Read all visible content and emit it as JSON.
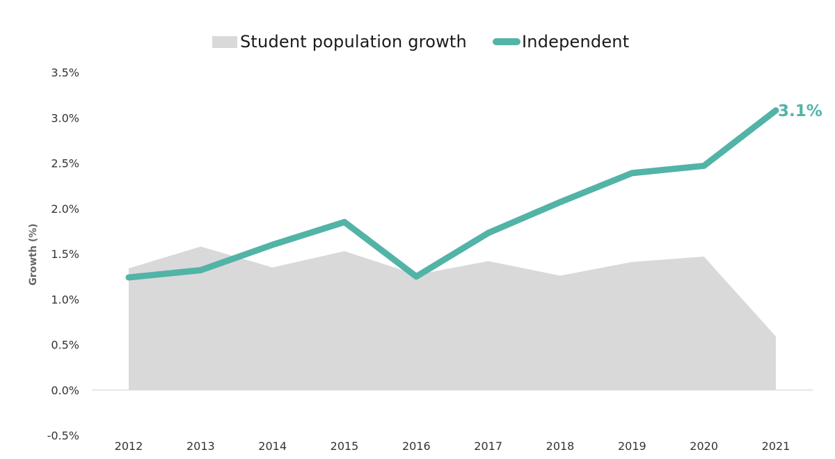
{
  "chart_data": {
    "type": "line",
    "title": "",
    "xlabel": "",
    "ylabel": "Growth (%)",
    "ylim": [
      -0.005,
      0.035
    ],
    "y_ticks": [
      "-0.5%",
      "0.0%",
      "0.5%",
      "1.0%",
      "1.5%",
      "2.0%",
      "2.5%",
      "3.0%",
      "3.5%"
    ],
    "y_tick_values": [
      -0.005,
      0.0,
      0.005,
      0.01,
      0.015,
      0.02,
      0.025,
      0.03,
      0.035
    ],
    "categories": [
      "2012",
      "2013",
      "2014",
      "2015",
      "2016",
      "2017",
      "2018",
      "2019",
      "2020",
      "2021"
    ],
    "series": [
      {
        "name": "Student population growth",
        "kind": "area",
        "color": "#d9d9d9",
        "values": [
          0.0134,
          0.0158,
          0.0135,
          0.0153,
          0.0127,
          0.0142,
          0.0126,
          0.0141,
          0.0147,
          0.0059
        ]
      },
      {
        "name": "Independent",
        "kind": "line",
        "color": "#52b3a7",
        "values": [
          0.0124,
          0.0132,
          0.016,
          0.0185,
          0.0125,
          0.0173,
          0.0207,
          0.0239,
          0.0247,
          0.0308
        ]
      }
    ],
    "annotations": [
      {
        "series": "Independent",
        "category": "2021",
        "text": "3.1%"
      }
    ],
    "legend_position": "top-center",
    "grid": false
  },
  "legend": {
    "area_label": "Student population growth",
    "line_label": "Independent"
  }
}
